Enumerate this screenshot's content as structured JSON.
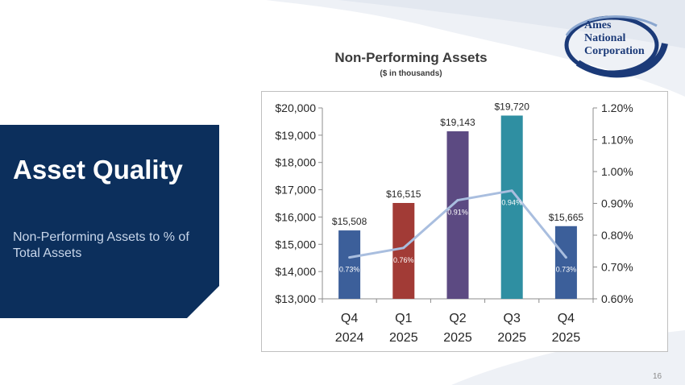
{
  "section": {
    "title": "Asset Quality",
    "subtitle": "Non-Performing Assets to % of Total Assets"
  },
  "logo": {
    "line1": "Ames",
    "line2": "National",
    "line3": "Corporation"
  },
  "page_number": "16",
  "colors": {
    "panel": "#0c2f5c",
    "accent_line": "#a9bedf",
    "bar_colors": [
      "#3c5f9a",
      "#a23b36",
      "#5c4a82",
      "#2f8fa2",
      "#3c5f9a"
    ]
  },
  "chart_data": {
    "type": "bar",
    "title": "Non-Performing Assets",
    "subtitle": "($ in thousands)",
    "categories": [
      [
        "Q4",
        "2024"
      ],
      [
        "Q1",
        "2025"
      ],
      [
        "Q2",
        "2025"
      ],
      [
        "Q3",
        "2025"
      ],
      [
        "Q4",
        "2025"
      ]
    ],
    "series": [
      {
        "name": "Non-Performing Assets",
        "axis": "left",
        "type": "bar",
        "values": [
          15508,
          16515,
          19143,
          19720,
          15665
        ],
        "labels": [
          "$15,508",
          "$16,515",
          "$19,143",
          "$19,720",
          "$15,665"
        ]
      },
      {
        "name": "Non-Performing Assets to % of Total Assets",
        "axis": "right",
        "type": "line",
        "values": [
          0.73,
          0.76,
          0.91,
          0.94,
          0.73
        ],
        "labels": [
          "0.73%",
          "0.76%",
          "0.91%",
          "0.94%",
          "0.73%"
        ]
      }
    ],
    "y_left": {
      "min": 13000,
      "max": 20000,
      "ticks": [
        "$13,000",
        "$14,000",
        "$15,000",
        "$16,000",
        "$17,000",
        "$18,000",
        "$19,000",
        "$20,000"
      ]
    },
    "y_right": {
      "min": 0.6,
      "max": 1.2,
      "ticks": [
        "0.60%",
        "0.70%",
        "0.80%",
        "0.90%",
        "1.00%",
        "1.10%",
        "1.20%"
      ]
    },
    "grid": false
  }
}
